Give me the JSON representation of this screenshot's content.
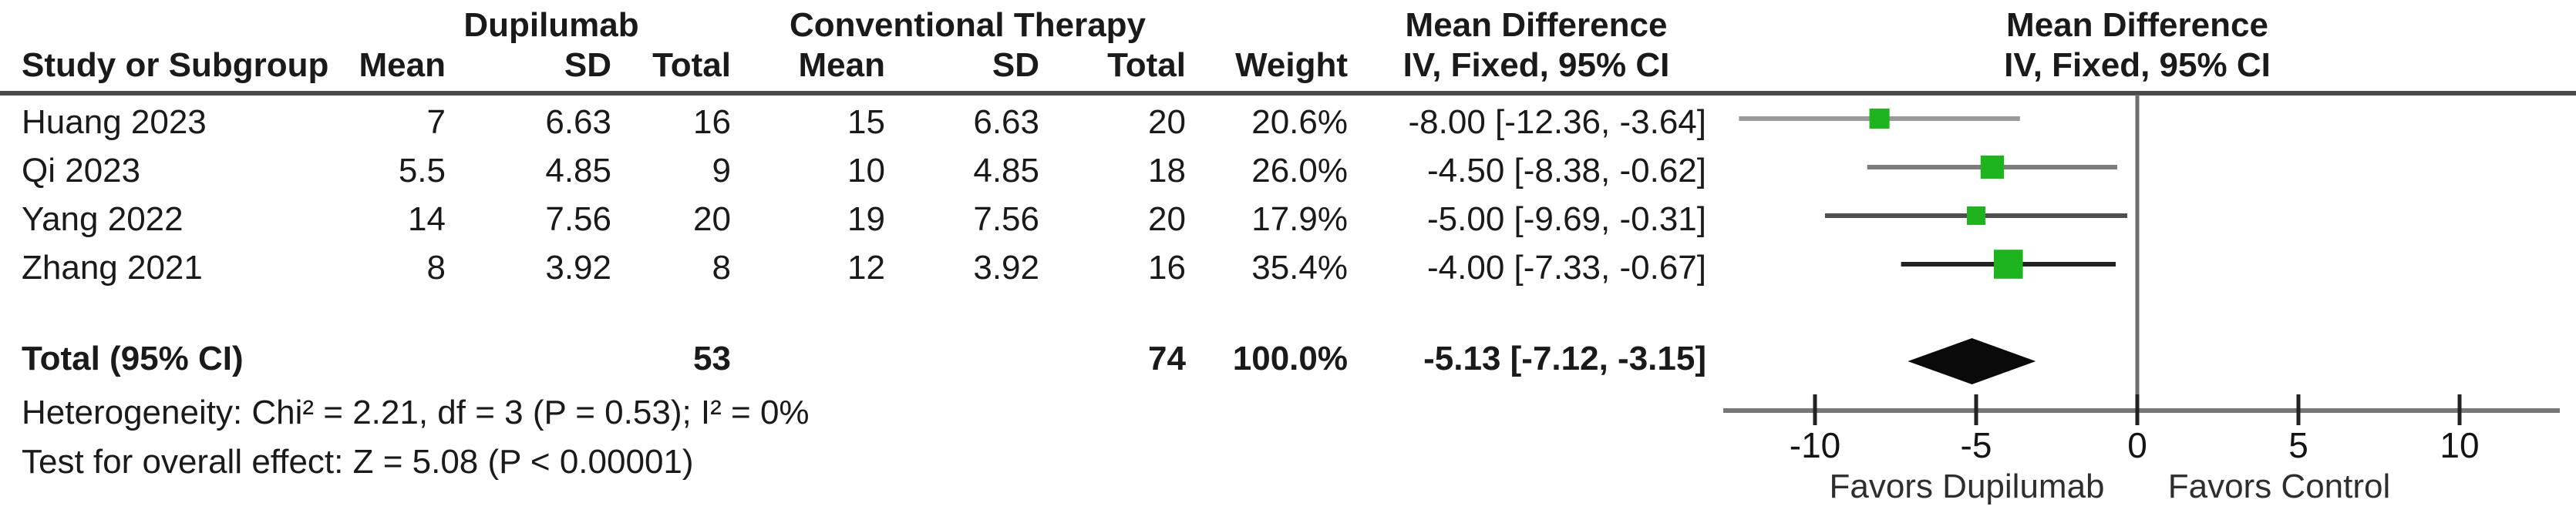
{
  "table": {
    "group1_label": "Dupilumab",
    "group2_label": "Conventional Therapy",
    "md_header_line1": "Mean Difference",
    "md_header_line2": "IV, Fixed, 95% CI",
    "plot_header_line1": "Mean Difference",
    "plot_header_line2": "IV, Fixed, 95% CI",
    "col_study": "Study or Subgroup",
    "col_mean": "Mean",
    "col_sd": "SD",
    "col_total": "Total",
    "col_weight": "Weight",
    "total_row": {
      "label": "Total (95% CI)",
      "total1": "53",
      "total2": "74",
      "weight": "100.0%",
      "ci_text": "-5.13 [-7.12, -3.15]"
    },
    "heterogeneity_text": "Heterogeneity: Chi² = 2.21, df = 3 (P = 0.53); I² = 0%",
    "overall_effect_text": "Test for overall effect: Z = 5.08 (P < 0.00001)"
  },
  "chart_data": {
    "type": "forest",
    "measure": "Mean Difference",
    "model": "IV, Fixed, 95% CI",
    "studies": [
      {
        "name": "Huang 2023",
        "md": -8.0,
        "ci_low": -12.36,
        "ci_high": -3.64,
        "weight_pct": 20.6,
        "line_color": "#9a9a9a",
        "display": {
          "study": "Huang 2023",
          "mean1": "7",
          "sd1": "6.63",
          "total1": "16",
          "mean2": "15",
          "sd2": "6.63",
          "total2": "20",
          "weight": "20.6%",
          "ci_text": "-8.00 [-12.36, -3.64]"
        }
      },
      {
        "name": "Qi 2023",
        "md": -4.5,
        "ci_low": -8.38,
        "ci_high": -0.62,
        "weight_pct": 26.0,
        "line_color": "#7d7d7d",
        "display": {
          "study": "Qi 2023",
          "mean1": "5.5",
          "sd1": "4.85",
          "total1": "9",
          "mean2": "10",
          "sd2": "4.85",
          "total2": "18",
          "weight": "26.0%",
          "ci_text": "-4.50 [-8.38, -0.62]"
        }
      },
      {
        "name": "Yang 2022",
        "md": -5.0,
        "ci_low": -9.69,
        "ci_high": -0.31,
        "weight_pct": 17.9,
        "line_color": "#4f4f4f",
        "display": {
          "study": "Yang 2022",
          "mean1": "14",
          "sd1": "7.56",
          "total1": "20",
          "mean2": "19",
          "sd2": "7.56",
          "total2": "20",
          "weight": "17.9%",
          "ci_text": "-5.00 [-9.69, -0.31]"
        }
      },
      {
        "name": "Zhang 2021",
        "md": -4.0,
        "ci_low": -7.33,
        "ci_high": -0.67,
        "weight_pct": 35.4,
        "line_color": "#222222",
        "display": {
          "study": "Zhang 2021",
          "mean1": "8",
          "sd1": "3.92",
          "total1": "8",
          "mean2": "12",
          "sd2": "3.92",
          "total2": "16",
          "weight": "35.4%",
          "ci_text": "-4.00 [-7.33, -0.67]"
        }
      }
    ],
    "total": {
      "label": "Total (95% CI)",
      "md": -5.13,
      "ci_low": -7.12,
      "ci_high": -3.15,
      "total1": 53,
      "total2": 74,
      "weight_pct": 100.0
    },
    "heterogeneity": {
      "chi2": 2.21,
      "df": 3,
      "p": 0.53,
      "i2_pct": 0
    },
    "overall_effect": {
      "z": 5.08,
      "p": "< 0.00001"
    },
    "axis": {
      "ticks": [
        -10,
        -5,
        0,
        5,
        10
      ],
      "xmin": -12.85,
      "xmax": 13.1,
      "label_left": "Favors Dupilumab",
      "label_right": "Favors Control"
    },
    "colors": {
      "square": "#1eb41e",
      "diamond": "#0a0a0a",
      "axis_line": "#787878",
      "zero_line": "#6e6e6e",
      "top_rule": "#4a4a4a",
      "tick": "#222222",
      "tick_label": "#141414",
      "favors_label": "#2e2e2e"
    }
  }
}
